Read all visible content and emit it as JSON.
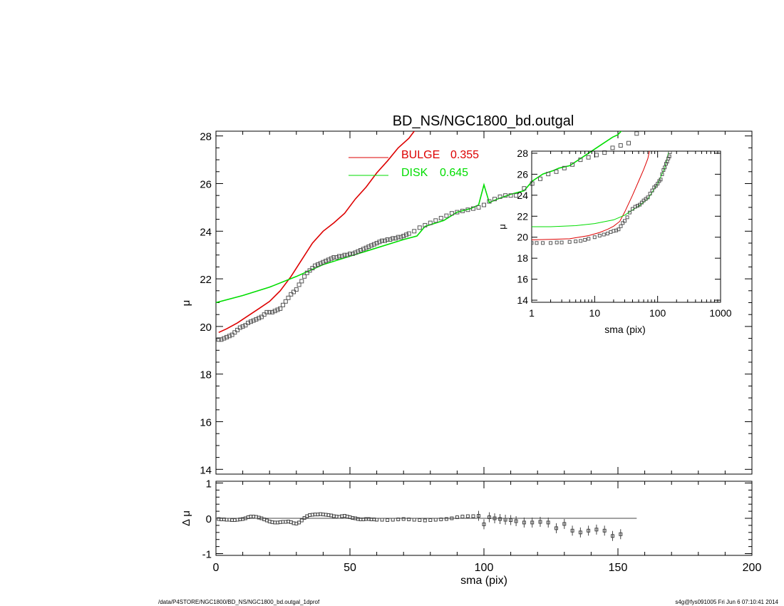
{
  "footer": {
    "path": "/data/P4STORE/NGC1800/BD_NS/NGC1800_bd.outgal_1dprof",
    "stamp": "s4g@fys091005  Fri Jun  6 07:10:41 2014"
  },
  "colors": {
    "bulge": "#dd0000",
    "disk": "#00dd00",
    "data": "#555555",
    "axes": "#000000"
  },
  "chart_data": [
    {
      "id": "main-profile",
      "type": "line",
      "title": "BD_NS/NGC1800_bd.outgal",
      "xlabel": "",
      "ylabel": "μ",
      "xlim": [
        0,
        200
      ],
      "ylim": [
        28.2,
        13.8
      ],
      "y_inverted": true,
      "yticks": [
        14,
        16,
        18,
        20,
        22,
        24,
        26,
        28
      ],
      "grid": false,
      "legend": {
        "placement": "top-center",
        "entries": [
          {
            "label": "BULGE",
            "value": "0.355",
            "color": "#dd0000"
          },
          {
            "label": "DISK",
            "value": "0.645",
            "color": "#00dd00"
          }
        ]
      },
      "series": [
        {
          "key": "bulge",
          "style": "line",
          "color": "#dd0000",
          "x": [
            1,
            4,
            8,
            12,
            16,
            20,
            24,
            28,
            32,
            36,
            40,
            44,
            48,
            52,
            56,
            60,
            64,
            68,
            72,
            74
          ],
          "y": [
            19.75,
            19.9,
            20.15,
            20.45,
            20.75,
            21.05,
            21.5,
            22.1,
            22.8,
            23.5,
            24.0,
            24.35,
            24.75,
            25.35,
            25.85,
            26.45,
            26.95,
            27.5,
            27.9,
            28.2
          ]
        },
        {
          "key": "disk",
          "style": "line",
          "color": "#00dd00",
          "x": [
            0,
            10,
            20,
            30,
            40,
            50,
            60,
            70,
            75,
            78,
            85,
            90,
            95,
            98,
            100,
            102,
            105,
            110,
            115,
            118,
            122,
            126,
            128,
            132,
            136,
            140,
            144,
            148,
            150,
            152
          ],
          "y": [
            21.0,
            21.3,
            21.65,
            22.1,
            22.6,
            22.95,
            23.3,
            23.65,
            23.8,
            24.2,
            24.45,
            24.8,
            24.95,
            25.1,
            25.95,
            25.2,
            25.35,
            25.55,
            25.7,
            26.1,
            26.4,
            26.55,
            26.65,
            26.75,
            27.05,
            27.35,
            27.65,
            27.95,
            28.05,
            28.3
          ]
        },
        {
          "key": "data",
          "style": "points",
          "color": "#555555",
          "x": [
            1,
            2,
            3,
            4,
            5,
            6,
            7,
            8,
            9,
            10,
            11,
            12,
            13,
            14,
            15,
            16,
            17,
            18,
            19,
            20,
            21,
            22,
            23,
            24,
            25,
            26,
            27,
            28,
            29,
            30,
            31,
            32,
            33,
            34,
            35,
            36,
            37,
            38,
            39,
            40,
            41,
            42,
            43,
            44,
            45,
            46,
            47,
            48,
            49,
            50,
            51,
            52,
            53,
            54,
            55,
            56,
            57,
            58,
            59,
            60,
            61,
            62,
            63,
            64,
            65,
            66,
            67,
            68,
            69,
            70,
            71,
            72,
            74,
            76,
            78,
            80,
            82,
            84,
            86,
            88,
            90,
            92,
            94,
            96,
            98,
            100,
            102,
            104,
            106,
            108,
            110,
            112,
            115,
            118,
            121,
            124,
            127,
            130,
            133,
            136,
            139,
            142,
            145,
            148,
            151,
            154,
            157
          ],
          "y": [
            19.45,
            19.45,
            19.5,
            19.55,
            19.6,
            19.65,
            19.75,
            19.85,
            19.95,
            20.0,
            20.05,
            20.15,
            20.2,
            20.25,
            20.3,
            20.35,
            20.4,
            20.5,
            20.6,
            20.6,
            20.6,
            20.65,
            20.7,
            20.75,
            20.9,
            21.05,
            21.2,
            21.35,
            21.45,
            21.55,
            21.75,
            21.9,
            22.1,
            22.25,
            22.35,
            22.45,
            22.55,
            22.6,
            22.65,
            22.7,
            22.75,
            22.8,
            22.85,
            22.9,
            22.9,
            22.95,
            22.95,
            23.0,
            23.0,
            23.05,
            23.05,
            23.1,
            23.15,
            23.2,
            23.25,
            23.3,
            23.35,
            23.4,
            23.45,
            23.5,
            23.55,
            23.6,
            23.6,
            23.65,
            23.65,
            23.7,
            23.7,
            23.75,
            23.75,
            23.8,
            23.85,
            23.9,
            24.0,
            24.15,
            24.25,
            24.35,
            24.45,
            24.55,
            24.65,
            24.75,
            24.8,
            24.85,
            24.9,
            24.95,
            25.0,
            25.1,
            25.25,
            25.35,
            25.45,
            25.5,
            25.5,
            25.5,
            25.8,
            26.0,
            26.2,
            26.4,
            26.5,
            26.65,
            26.8,
            27.0,
            27.1,
            27.2,
            27.3,
            27.5,
            27.6,
            27.7,
            28.1
          ]
        }
      ]
    },
    {
      "id": "inset-profile",
      "type": "line",
      "title": "",
      "xlabel": "sma (pix)",
      "ylabel": "μ",
      "xscale": "log",
      "xlim": [
        1,
        1000
      ],
      "xticks": [
        1,
        10,
        100,
        1000
      ],
      "ylim": [
        28.2,
        13.8
      ],
      "y_inverted": true,
      "yticks": [
        14,
        16,
        18,
        20,
        22,
        24,
        26,
        28
      ],
      "grid": false,
      "series": [
        {
          "key": "bulge",
          "style": "line",
          "color": "#dd0000",
          "x": [
            1,
            2,
            4,
            8,
            12,
            16,
            20,
            25,
            30,
            40,
            50,
            60,
            70,
            74
          ],
          "y": [
            19.75,
            19.8,
            19.85,
            20.15,
            20.45,
            20.75,
            21.05,
            21.5,
            22.4,
            24.0,
            25.35,
            26.45,
            27.5,
            28.2
          ]
        },
        {
          "key": "disk",
          "style": "line",
          "color": "#00dd00",
          "x": [
            1,
            2,
            5,
            10,
            20,
            30,
            40,
            50,
            70,
            100,
            130,
            152
          ],
          "y": [
            21.0,
            21.0,
            21.1,
            21.3,
            21.65,
            22.1,
            22.6,
            22.95,
            23.65,
            25.1,
            26.6,
            28.3
          ]
        },
        {
          "key": "data",
          "style": "points",
          "color": "#555555",
          "x": [
            1,
            1.2,
            1.5,
            2,
            2.5,
            3,
            4,
            5,
            6,
            7,
            8,
            10,
            12,
            14,
            16,
            18,
            20,
            22,
            24,
            26,
            28,
            30,
            33,
            36,
            40,
            44,
            48,
            52,
            56,
            60,
            65,
            70,
            76,
            82,
            88,
            94,
            100,
            106,
            112,
            118,
            124,
            130,
            136,
            142,
            148,
            154,
            157
          ],
          "y": [
            19.45,
            19.45,
            19.45,
            19.45,
            19.5,
            19.5,
            19.55,
            19.6,
            19.65,
            19.75,
            19.85,
            20.0,
            20.15,
            20.25,
            20.35,
            20.5,
            20.6,
            20.65,
            20.75,
            21.05,
            21.35,
            21.55,
            21.9,
            22.35,
            22.7,
            22.9,
            23.0,
            23.1,
            23.3,
            23.5,
            23.65,
            23.8,
            24.15,
            24.45,
            24.75,
            24.9,
            25.1,
            25.35,
            25.5,
            26.0,
            26.4,
            26.65,
            27.0,
            27.2,
            27.5,
            27.7,
            28.1
          ]
        }
      ]
    },
    {
      "id": "residuals",
      "type": "scatter",
      "title": "",
      "xlabel": "sma (pix)",
      "ylabel": "Δ μ",
      "xlim": [
        0,
        200
      ],
      "xticks": [
        0,
        50,
        100,
        150,
        200
      ],
      "ylim": [
        -1.05,
        1.05
      ],
      "yticks": [
        -1,
        0,
        1
      ],
      "zero_line_to": 157,
      "grid": false,
      "series": [
        {
          "key": "residual",
          "color": "#444444",
          "x": [
            1,
            2,
            3,
            4,
            5,
            6,
            7,
            8,
            9,
            10,
            11,
            12,
            13,
            14,
            15,
            16,
            17,
            18,
            19,
            20,
            21,
            22,
            23,
            24,
            25,
            26,
            27,
            28,
            29,
            30,
            31,
            32,
            33,
            34,
            35,
            36,
            37,
            38,
            39,
            40,
            41,
            42,
            43,
            44,
            45,
            46,
            47,
            48,
            49,
            50,
            51,
            52,
            53,
            54,
            55,
            56,
            57,
            58,
            59,
            60,
            62,
            64,
            66,
            68,
            70,
            72,
            74,
            76,
            78,
            80,
            82,
            84,
            86,
            88,
            90,
            92,
            94,
            96,
            98,
            100,
            102,
            104,
            106,
            108,
            110,
            112,
            115,
            118,
            121,
            124,
            127,
            130,
            133,
            136,
            139,
            142,
            145,
            148,
            151
          ],
          "y": [
            -0.02,
            -0.03,
            -0.03,
            -0.04,
            -0.04,
            -0.05,
            -0.05,
            -0.04,
            -0.03,
            -0.02,
            0.0,
            0.03,
            0.05,
            0.05,
            0.04,
            0.02,
            0.0,
            -0.03,
            -0.06,
            -0.09,
            -0.11,
            -0.12,
            -0.12,
            -0.11,
            -0.1,
            -0.1,
            -0.09,
            -0.11,
            -0.14,
            -0.15,
            -0.12,
            -0.06,
            0.01,
            0.06,
            0.09,
            0.1,
            0.11,
            0.11,
            0.12,
            0.11,
            0.1,
            0.09,
            0.08,
            0.06,
            0.05,
            0.04,
            0.06,
            0.07,
            0.05,
            0.03,
            0.01,
            0.0,
            -0.02,
            -0.03,
            -0.03,
            -0.02,
            -0.02,
            -0.03,
            -0.03,
            -0.04,
            -0.04,
            -0.05,
            -0.04,
            -0.03,
            -0.02,
            -0.03,
            -0.04,
            -0.05,
            -0.06,
            -0.05,
            -0.04,
            -0.03,
            -0.02,
            0.0,
            0.03,
            0.05,
            0.06,
            0.06,
            0.07,
            -0.17,
            0.03,
            0.0,
            -0.02,
            -0.04,
            -0.05,
            -0.08,
            -0.12,
            -0.12,
            -0.1,
            -0.12,
            -0.28,
            -0.16,
            -0.35,
            -0.4,
            -0.35,
            -0.32,
            -0.35,
            -0.5,
            -0.45
          ]
        }
      ]
    }
  ]
}
